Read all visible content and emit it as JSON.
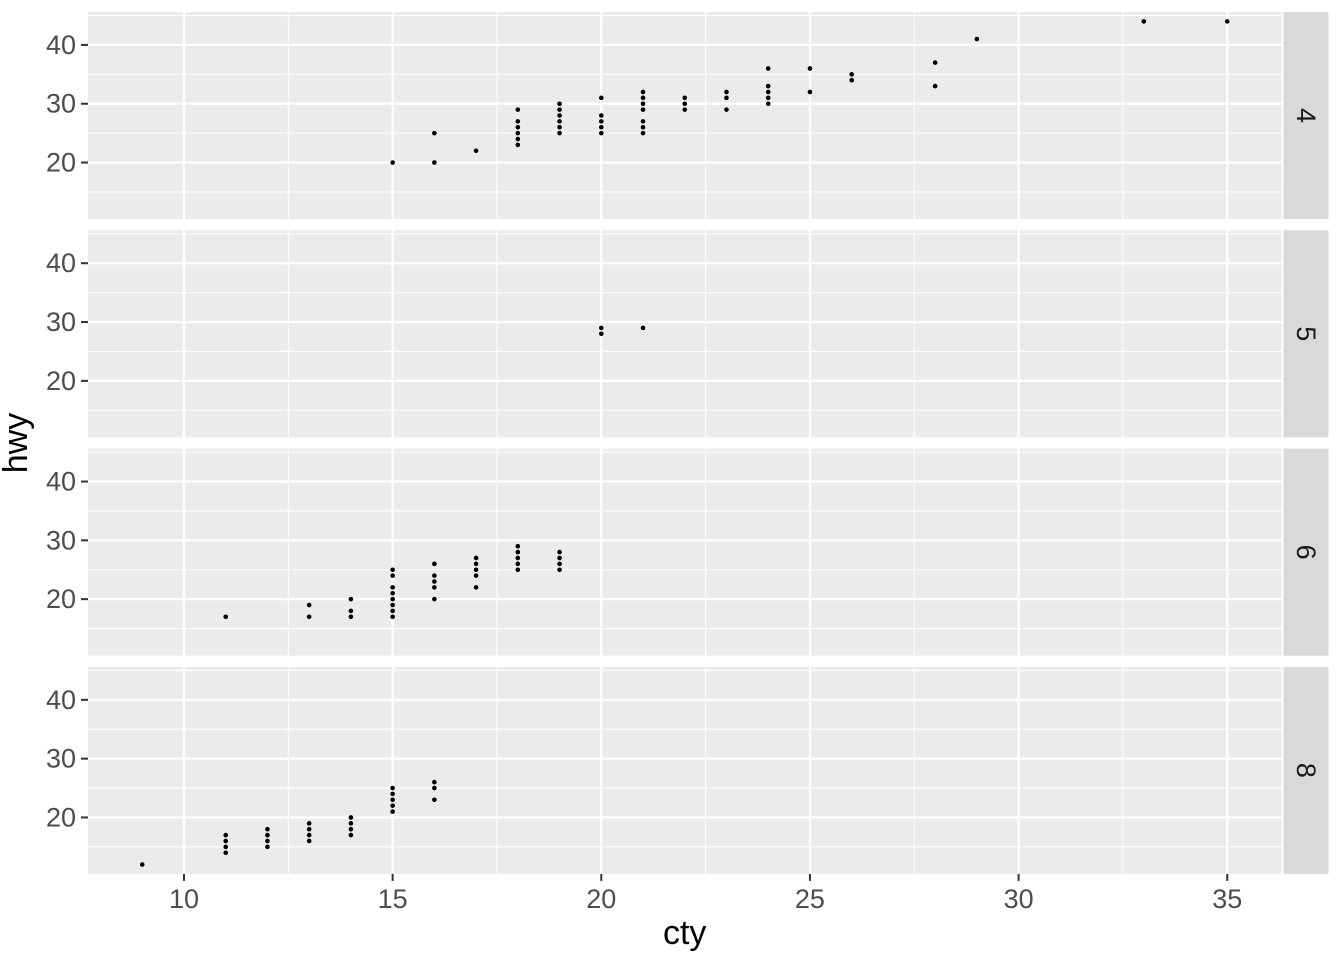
{
  "chart_data": {
    "type": "scatter",
    "title": "",
    "xlabel": "cty",
    "ylabel": "hwy",
    "legend": "none",
    "grid": "on",
    "facet_strip_side": "right",
    "x_ticks": [
      10,
      15,
      20,
      25,
      30,
      35
    ],
    "y_ticks": [
      20,
      30,
      40
    ],
    "x_minor": [
      12.5,
      17.5,
      22.5,
      27.5,
      32.5
    ],
    "y_minor": [
      15,
      25,
      35,
      45
    ],
    "xlim": [
      7.7,
      36.3
    ],
    "ylim": [
      10.4,
      45.6
    ],
    "facets": [
      {
        "label": "4",
        "points": [
          [
            15,
            20
          ],
          [
            16,
            20
          ],
          [
            16,
            25
          ],
          [
            17,
            22
          ],
          [
            18,
            23
          ],
          [
            18,
            24
          ],
          [
            18,
            25
          ],
          [
            18,
            26
          ],
          [
            18,
            27
          ],
          [
            18,
            29
          ],
          [
            19,
            25
          ],
          [
            19,
            26
          ],
          [
            19,
            27
          ],
          [
            19,
            28
          ],
          [
            19,
            29
          ],
          [
            19,
            30
          ],
          [
            20,
            25
          ],
          [
            20,
            26
          ],
          [
            20,
            27
          ],
          [
            20,
            28
          ],
          [
            20,
            31
          ],
          [
            21,
            25
          ],
          [
            21,
            26
          ],
          [
            21,
            27
          ],
          [
            21,
            29
          ],
          [
            21,
            30
          ],
          [
            21,
            31
          ],
          [
            21,
            32
          ],
          [
            22,
            29
          ],
          [
            22,
            30
          ],
          [
            22,
            31
          ],
          [
            23,
            29
          ],
          [
            23,
            31
          ],
          [
            23,
            32
          ],
          [
            24,
            30
          ],
          [
            24,
            31
          ],
          [
            24,
            32
          ],
          [
            24,
            33
          ],
          [
            24,
            36
          ],
          [
            25,
            32
          ],
          [
            25,
            36
          ],
          [
            26,
            34
          ],
          [
            26,
            35
          ],
          [
            28,
            33
          ],
          [
            28,
            37
          ],
          [
            29,
            41
          ],
          [
            33,
            44
          ],
          [
            35,
            44
          ]
        ]
      },
      {
        "label": "5",
        "points": [
          [
            20,
            28
          ],
          [
            20,
            29
          ],
          [
            21,
            29
          ]
        ]
      },
      {
        "label": "6",
        "points": [
          [
            11,
            17
          ],
          [
            13,
            17
          ],
          [
            13,
            19
          ],
          [
            14,
            17
          ],
          [
            14,
            18
          ],
          [
            14,
            20
          ],
          [
            15,
            17
          ],
          [
            15,
            18
          ],
          [
            15,
            19
          ],
          [
            15,
            20
          ],
          [
            15,
            21
          ],
          [
            15,
            22
          ],
          [
            15,
            24
          ],
          [
            15,
            25
          ],
          [
            16,
            20
          ],
          [
            16,
            22
          ],
          [
            16,
            23
          ],
          [
            16,
            24
          ],
          [
            16,
            26
          ],
          [
            17,
            22
          ],
          [
            17,
            24
          ],
          [
            17,
            25
          ],
          [
            17,
            26
          ],
          [
            17,
            27
          ],
          [
            18,
            25
          ],
          [
            18,
            26
          ],
          [
            18,
            27
          ],
          [
            18,
            28
          ],
          [
            18,
            29
          ],
          [
            19,
            25
          ],
          [
            19,
            26
          ],
          [
            19,
            27
          ],
          [
            19,
            28
          ]
        ]
      },
      {
        "label": "8",
        "points": [
          [
            9,
            12
          ],
          [
            11,
            14
          ],
          [
            11,
            15
          ],
          [
            11,
            16
          ],
          [
            11,
            17
          ],
          [
            12,
            15
          ],
          [
            12,
            16
          ],
          [
            12,
            17
          ],
          [
            12,
            18
          ],
          [
            13,
            16
          ],
          [
            13,
            17
          ],
          [
            13,
            18
          ],
          [
            13,
            19
          ],
          [
            14,
            17
          ],
          [
            14,
            18
          ],
          [
            14,
            19
          ],
          [
            14,
            20
          ],
          [
            15,
            21
          ],
          [
            15,
            22
          ],
          [
            15,
            23
          ],
          [
            15,
            24
          ],
          [
            15,
            25
          ],
          [
            16,
            23
          ],
          [
            16,
            25
          ],
          [
            16,
            26
          ]
        ]
      }
    ],
    "colors": {
      "panel_background": "#EBEBEB",
      "strip_background": "#D9D9D9",
      "gridline": "#FFFFFF",
      "point": "#000000",
      "tick_mark": "#333333",
      "tick_label": "#4D4D4D",
      "axis_title": "#000000",
      "strip_text": "#1A1A1A",
      "page_background": "#FFFFFF"
    }
  }
}
